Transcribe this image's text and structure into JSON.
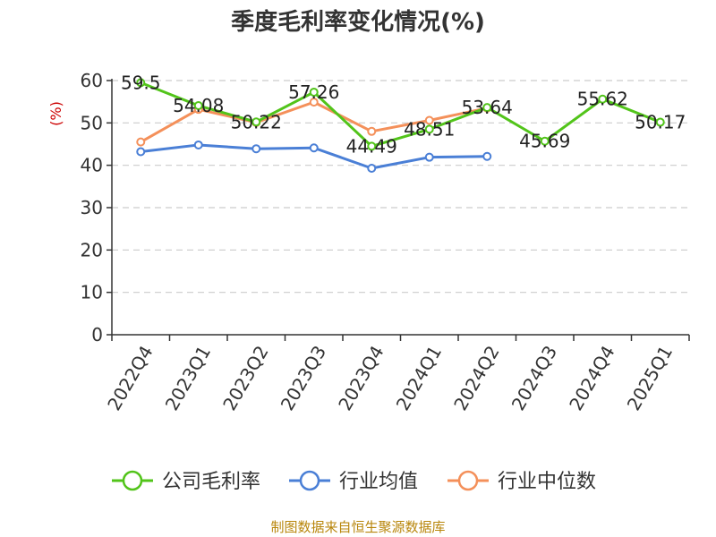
{
  "chart_data": {
    "type": "line",
    "title": "季度毛利率变化情况(%)",
    "ylabel": "(%)",
    "xlabel": "",
    "categories": [
      "2022Q4",
      "2023Q1",
      "2023Q2",
      "2023Q3",
      "2023Q4",
      "2024Q1",
      "2024Q2",
      "2024Q3",
      "2024Q4",
      "2025Q1"
    ],
    "ylim": [
      0,
      60
    ],
    "yticks": [
      0,
      10,
      20,
      30,
      40,
      50,
      60
    ],
    "grid": true,
    "legend_position": "bottom",
    "series": [
      {
        "name": "公司毛利率",
        "color": "#52c41a",
        "values": [
          59.5,
          54.08,
          50.22,
          57.26,
          44.49,
          48.51,
          53.64,
          45.69,
          55.62,
          50.17
        ],
        "labels": [
          "59.5",
          "54.08",
          "50.22",
          "57.26",
          "44.49",
          "48.51",
          "53.64",
          "45.69",
          "55.62",
          "50.17"
        ]
      },
      {
        "name": "行业均值",
        "color": "#4a7fd6",
        "values": [
          43.2,
          44.8,
          43.9,
          44.1,
          39.3,
          41.9,
          42.1,
          null,
          null,
          null
        ]
      },
      {
        "name": "行业中位数",
        "color": "#f4905a",
        "values": [
          45.5,
          53.2,
          50.1,
          54.9,
          48.0,
          50.6,
          53.5,
          null,
          null,
          null
        ]
      }
    ],
    "source": "制图数据来自恒生聚源数据库"
  }
}
